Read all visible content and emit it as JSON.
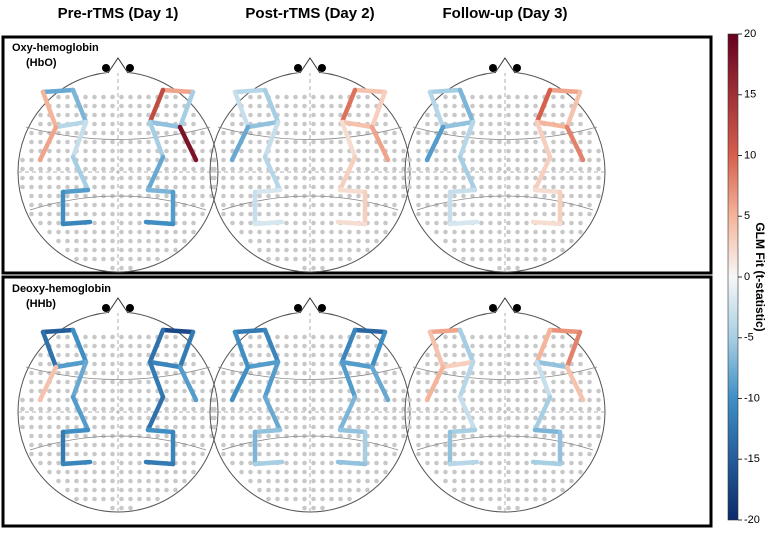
{
  "chart_data": {
    "type": "topo-map",
    "columns": [
      "Pre-rTMS (Day 1)",
      "Post-rTMS (Day 2)",
      "Follow-up (Day 3)"
    ],
    "rows": [
      {
        "label": "Oxy-hemoglobin",
        "sublabel": "(HbO)"
      },
      {
        "label": "Deoxy-hemoglobin",
        "sublabel": "(HHb)"
      }
    ],
    "panels": [
      [
        -8,
        5,
        -7,
        -4,
        -3,
        6,
        -5,
        -9,
        -10,
        -11,
        6,
        -5,
        12,
        -6,
        -5,
        18,
        -8,
        -7,
        -9,
        -10
      ],
      [
        -4,
        -3,
        -5,
        -6,
        -3,
        -8,
        -4,
        -2,
        -3,
        -2,
        4,
        3,
        9,
        4,
        2,
        6,
        3,
        2,
        3,
        2
      ],
      [
        -5,
        -4,
        -7,
        -6,
        -4,
        -9,
        -5,
        -3,
        -3,
        -2,
        6,
        4,
        10,
        5,
        3,
        8,
        3,
        2,
        3,
        2
      ],
      [
        -15,
        -13,
        -10,
        -9,
        -8,
        4,
        -9,
        -10,
        -12,
        -11,
        -17,
        -12,
        -13,
        -11,
        -12,
        -9,
        -13,
        -10,
        -11,
        -12
      ],
      [
        -12,
        -10,
        -11,
        -9,
        -9,
        -10,
        -8,
        -6,
        -7,
        -5,
        -14,
        -10,
        -11,
        -9,
        -9,
        -8,
        -7,
        -6,
        -5,
        -6
      ],
      [
        6,
        4,
        -5,
        3,
        -4,
        5,
        -3,
        -5,
        -6,
        -4,
        7,
        8,
        5,
        -6,
        -3,
        4,
        -5,
        -7,
        -6,
        -5
      ]
    ],
    "colorbar_label": "GLM Fit (t-statistic)",
    "ylim": [
      -20,
      20
    ],
    "yticks": [
      -20,
      -15,
      -10,
      -5,
      0,
      5,
      10,
      15,
      20
    ]
  }
}
